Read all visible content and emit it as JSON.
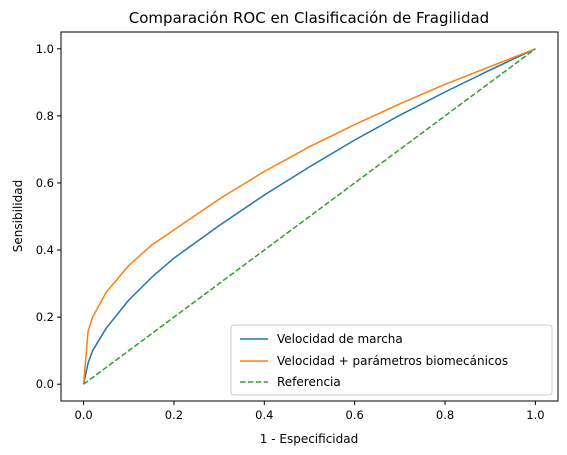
{
  "chart_data": {
    "type": "line",
    "title": "Comparación ROC en Clasificación de Fragilidad",
    "xlabel": "1 - Especificidad",
    "ylabel": "Sensibilidad",
    "xlim": [
      -0.05,
      1.05
    ],
    "ylim": [
      -0.05,
      1.05
    ],
    "xticks": [
      "0.0",
      "0.2",
      "0.4",
      "0.6",
      "0.8",
      "1.0"
    ],
    "yticks": [
      "0.0",
      "0.2",
      "0.4",
      "0.6",
      "0.8",
      "1.0"
    ],
    "grid": false,
    "legend_position": "bottom-right",
    "series": [
      {
        "name": "Velocidad de marcha",
        "color": "#1f77b4",
        "style": "solid",
        "x": [
          0.0,
          0.01,
          0.02,
          0.05,
          0.1,
          0.15,
          0.2,
          0.3,
          0.4,
          0.5,
          0.6,
          0.7,
          0.8,
          0.9,
          1.0
        ],
        "y": [
          0.0,
          0.063,
          0.1,
          0.167,
          0.251,
          0.318,
          0.376,
          0.473,
          0.564,
          0.648,
          0.728,
          0.802,
          0.871,
          0.937,
          1.0
        ]
      },
      {
        "name": "Velocidad + parámetros biomecánicos",
        "color": "#ff7f0e",
        "style": "solid",
        "x": [
          0.0,
          0.01,
          0.02,
          0.05,
          0.1,
          0.15,
          0.2,
          0.3,
          0.4,
          0.5,
          0.6,
          0.7,
          0.8,
          0.9,
          1.0
        ],
        "y": [
          0.0,
          0.158,
          0.2,
          0.274,
          0.354,
          0.414,
          0.46,
          0.552,
          0.634,
          0.708,
          0.774,
          0.836,
          0.894,
          0.947,
          1.0
        ]
      },
      {
        "name": "Referencia",
        "color": "#2ca02c",
        "style": "dashed",
        "x": [
          0.0,
          1.0
        ],
        "y": [
          0.0,
          1.0
        ]
      }
    ]
  }
}
